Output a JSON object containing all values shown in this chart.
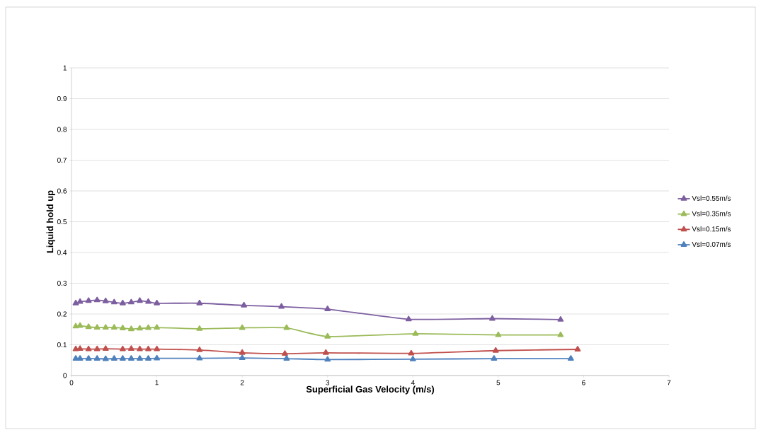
{
  "chart_data": {
    "type": "line",
    "xlabel": "Superficial Gas Velocity (m/s)",
    "ylabel": "Liquid hold up",
    "xlim": [
      0,
      7
    ],
    "ylim": [
      0,
      1
    ],
    "xticks": [
      0,
      1,
      2,
      3,
      4,
      5,
      6,
      7
    ],
    "yticks": [
      0,
      0.1,
      0.2,
      0.3,
      0.4,
      0.5,
      0.6,
      0.7,
      0.8,
      0.9,
      1
    ],
    "grid": "y",
    "legend": "right",
    "marker": "triangle",
    "line_style": "solid",
    "series": [
      {
        "name": "Vsl=0.55m/s",
        "color": "#7d5fa0",
        "x": [
          0.05,
          0.1,
          0.2,
          0.3,
          0.4,
          0.5,
          0.6,
          0.7,
          0.8,
          0.9,
          1.0,
          1.5,
          2.02,
          2.46,
          3.0,
          3.95,
          4.93,
          5.73
        ],
        "values": [
          0.235,
          0.24,
          0.243,
          0.245,
          0.242,
          0.238,
          0.235,
          0.238,
          0.243,
          0.24,
          0.235,
          0.235,
          0.228,
          0.224,
          0.216,
          0.183,
          0.185,
          0.182
        ]
      },
      {
        "name": "Vsl=0.35m/s",
        "color": "#9bbb59",
        "x": [
          0.05,
          0.1,
          0.2,
          0.3,
          0.4,
          0.5,
          0.6,
          0.7,
          0.8,
          0.9,
          1.0,
          1.5,
          2.0,
          2.52,
          3.0,
          4.03,
          5.0,
          5.73
        ],
        "values": [
          0.16,
          0.162,
          0.158,
          0.156,
          0.156,
          0.156,
          0.154,
          0.151,
          0.153,
          0.155,
          0.156,
          0.152,
          0.155,
          0.155,
          0.127,
          0.136,
          0.132,
          0.132
        ]
      },
      {
        "name": "Vsl=0.15m/s",
        "color": "#c0504d",
        "x": [
          0.05,
          0.1,
          0.2,
          0.3,
          0.4,
          0.6,
          0.7,
          0.8,
          0.9,
          1.0,
          1.5,
          2.0,
          2.5,
          2.98,
          3.98,
          4.97,
          5.93
        ],
        "values": [
          0.086,
          0.087,
          0.086,
          0.086,
          0.087,
          0.086,
          0.087,
          0.086,
          0.086,
          0.086,
          0.083,
          0.074,
          0.071,
          0.074,
          0.072,
          0.081,
          0.085
        ]
      },
      {
        "name": "Vsl=0.07m/s",
        "color": "#4f81bd",
        "x": [
          0.05,
          0.1,
          0.2,
          0.3,
          0.4,
          0.5,
          0.6,
          0.7,
          0.8,
          0.9,
          1.0,
          1.5,
          2.0,
          2.52,
          3.0,
          4.0,
          4.95,
          5.85
        ],
        "values": [
          0.055,
          0.055,
          0.055,
          0.055,
          0.054,
          0.055,
          0.055,
          0.055,
          0.055,
          0.055,
          0.056,
          0.056,
          0.057,
          0.055,
          0.052,
          0.053,
          0.055,
          0.055
        ]
      }
    ]
  }
}
